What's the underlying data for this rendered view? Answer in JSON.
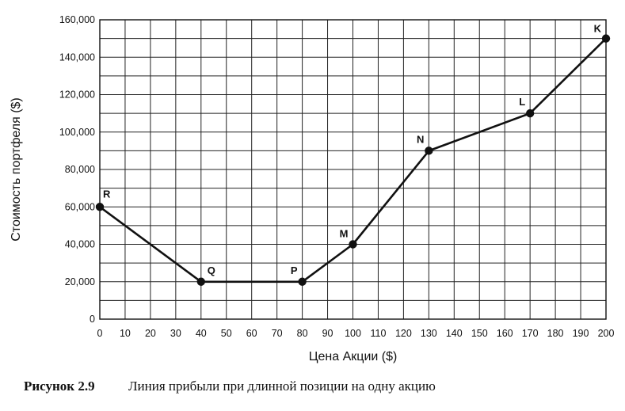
{
  "chart_data": {
    "type": "line",
    "xlabel": "Цена Акции ($)",
    "ylabel": "Стоимость портфеля ($)",
    "xlim": [
      0,
      200
    ],
    "ylim": [
      0,
      160000
    ],
    "grid": true,
    "x_ticks": [
      "0",
      "10",
      "20",
      "30",
      "40",
      "50",
      "60",
      "70",
      "80",
      "90",
      "100",
      "110",
      "120",
      "130",
      "140",
      "150",
      "160",
      "170",
      "180",
      "190",
      "200"
    ],
    "y_ticks": [
      "0",
      "20,000",
      "40,000",
      "60,000",
      "80,000",
      "100,000",
      "120,000",
      "140,000",
      "160,000"
    ],
    "x_tick_values": [
      0,
      10,
      20,
      30,
      40,
      50,
      60,
      70,
      80,
      90,
      100,
      110,
      120,
      130,
      140,
      150,
      160,
      170,
      180,
      190,
      200
    ],
    "y_tick_values": [
      0,
      20000,
      40000,
      60000,
      80000,
      100000,
      120000,
      140000,
      160000
    ],
    "points": [
      {
        "label": "R",
        "x": 0,
        "y": 60000
      },
      {
        "label": "Q",
        "x": 40,
        "y": 20000
      },
      {
        "label": "P",
        "x": 80,
        "y": 20000
      },
      {
        "label": "M",
        "x": 100,
        "y": 40000
      },
      {
        "label": "N",
        "x": 130,
        "y": 90000
      },
      {
        "label": "L",
        "x": 170,
        "y": 110000
      },
      {
        "label": "K",
        "x": 200,
        "y": 150000
      }
    ]
  },
  "caption": {
    "figure": "Рисунок 2.9",
    "text": "Линия прибыли при длинной позиции на одну акцию"
  }
}
